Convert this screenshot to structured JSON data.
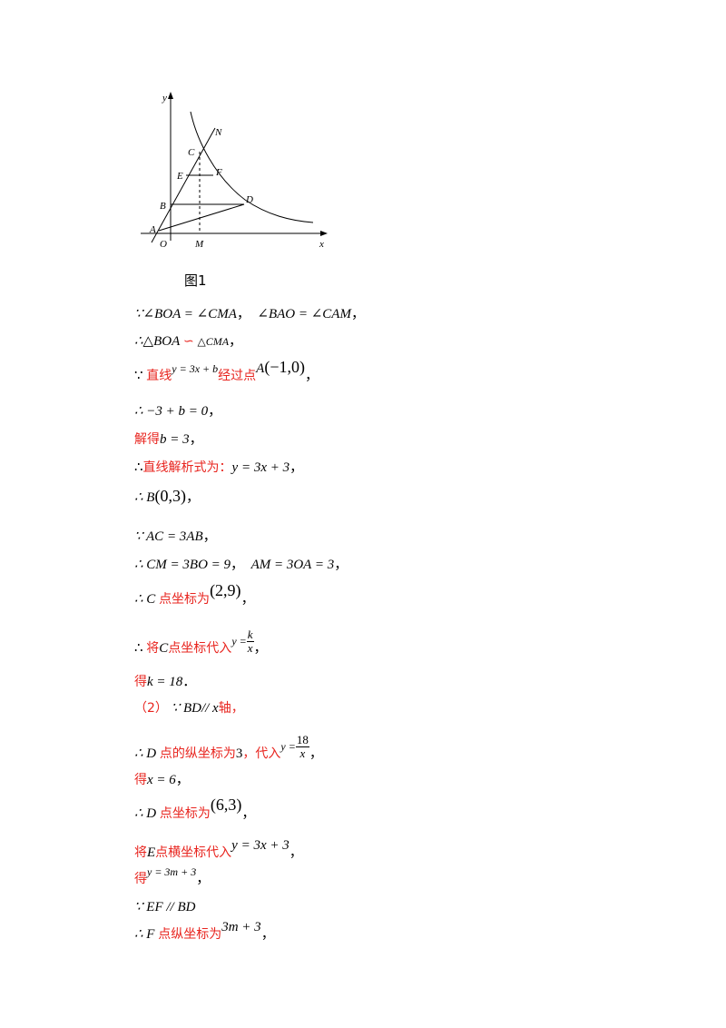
{
  "figure": {
    "labels": {
      "y": "y",
      "x": "x",
      "O": "O",
      "M": "M",
      "A": "A",
      "B": "B",
      "C": "C",
      "D": "D",
      "E": "E",
      "F": "F",
      "N": "N"
    },
    "caption": "图1"
  },
  "lines": {
    "l1": {
      "a": "∵∠BOA = ∠CMA",
      "b": "，",
      "c": "∠BAO = ∠CAM",
      "d": "，"
    },
    "l2": {
      "a": "∴△BOA",
      "b": "∽",
      "c": "△CMA",
      "d": "，"
    },
    "l3": {
      "a": "∵",
      "b": "直线",
      "c": "y = 3x + b",
      "d": "经过点",
      "e": "A",
      "f": "(−1,0)",
      "g": "，"
    },
    "l4": {
      "a": "∴ −3 + b = 0",
      "b": "，"
    },
    "l5": {
      "a": "解得",
      "b": "b = 3",
      "c": "，"
    },
    "l6": {
      "a": "∴",
      "b": "直线解析式为：",
      "c": "y = 3x + 3",
      "d": "，"
    },
    "l7": {
      "a": "∴ B",
      "b": "(0,3)",
      "c": "，"
    },
    "l8": {
      "a": "∵ AC = 3AB",
      "b": "，"
    },
    "l9": {
      "a": "∴ CM = 3BO = 9",
      "b": "，",
      "c": "AM = 3OA = 3",
      "d": "，"
    },
    "l10": {
      "a": "∴ C",
      "b": "点坐标为",
      "c": "(2,9)",
      "d": "，"
    },
    "l11": {
      "a": "∴",
      "b": "将",
      "c": "C",
      "d": "点坐标代入",
      "e": "y =",
      "num": "k",
      "den": "x",
      "f": "，"
    },
    "l12": {
      "a": "得",
      "b": "k = 18",
      "c": "．"
    },
    "l13": {
      "a": "（2）",
      "b": "∵ BD// x",
      "c": "轴，"
    },
    "l14": {
      "a": "∴ D",
      "b": "点的纵坐标为",
      "c": "3",
      "d": "，代入",
      "e": "y =",
      "num": "18",
      "den": "x",
      "f": "，"
    },
    "l15": {
      "a": "得",
      "b": "x = 6",
      "c": "，"
    },
    "l16": {
      "a": "∴ D",
      "b": "点坐标为",
      "c": "(6,3)",
      "d": "，"
    },
    "l17": {
      "a": "将",
      "b": "E",
      "c": "点横坐标代入",
      "d": "y = 3x + 3",
      "e": "，"
    },
    "l18": {
      "a": "得",
      "b": "y = 3m + 3",
      "c": "，"
    },
    "l19": {
      "a": "∵ EF // BD"
    },
    "l20": {
      "a": "∴ F",
      "b": "点纵坐标为",
      "c": "3m + 3",
      "d": "，"
    }
  }
}
